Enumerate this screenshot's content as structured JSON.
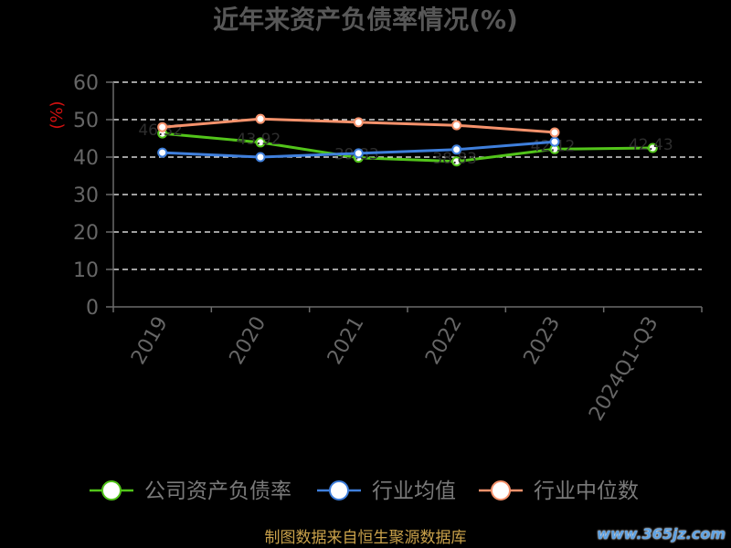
{
  "footer": "制图数据来自恒生聚源数据库",
  "watermark": "www.365jz.com",
  "chart_data": {
    "type": "line",
    "title": "近年来资产负债率情况(%)",
    "xlabel": "",
    "ylabel": "(%)",
    "categories": [
      "2019",
      "2020",
      "2021",
      "2022",
      "2023",
      "2024Q1-Q3"
    ],
    "ylim": [
      0,
      60
    ],
    "yticks": [
      0,
      10,
      20,
      30,
      40,
      50,
      60
    ],
    "grid": true,
    "legend": "bottom",
    "series": [
      {
        "name": "公司资产负债率",
        "color": "#52c41a",
        "values": [
          46.32,
          43.92,
          39.83,
          38.83,
          42.12,
          42.43
        ],
        "data_labels": true
      },
      {
        "name": "行业均值",
        "color": "#3f7fdc",
        "values": [
          41.2,
          40.0,
          41.0,
          42.0,
          44.1,
          null
        ]
      },
      {
        "name": "行业中位数",
        "color": "#f5926c",
        "values": [
          48.0,
          50.2,
          49.3,
          48.5,
          46.6,
          null
        ]
      }
    ]
  }
}
